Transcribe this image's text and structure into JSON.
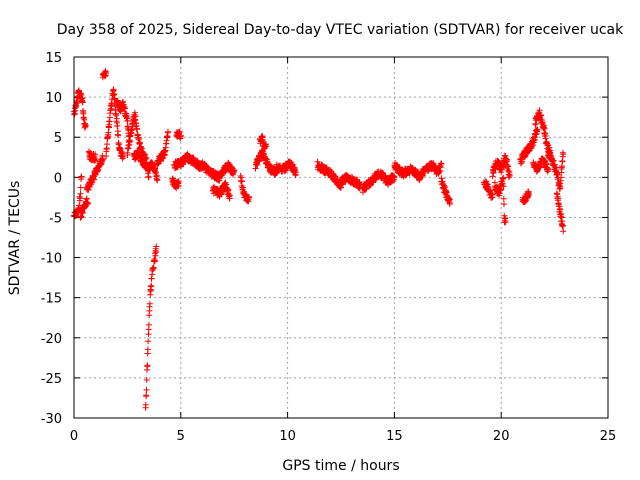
{
  "chart_data": {
    "type": "scatter",
    "title": "Day 358 of 2025, Sidereal Day-to-day VTEC variation (SDTVAR) for receiver ucak",
    "xlabel": "GPS time / hours",
    "ylabel": "SDTVAR / TECUs",
    "xlim": [
      0,
      25
    ],
    "ylim": [
      -30,
      15
    ],
    "xticks": [
      0,
      5,
      10,
      15,
      20,
      25
    ],
    "yticks": [
      -30,
      -25,
      -20,
      -15,
      -10,
      -5,
      0,
      5,
      10,
      15
    ],
    "grid": true,
    "marker": "+",
    "color": "#ff0000",
    "series": [
      {
        "name": "SDTVAR",
        "segments": [
          {
            "x0": 0.0,
            "x1": 0.35,
            "pts": [
              [
                0.0,
                -4.8
              ],
              [
                0.1,
                -4.6
              ],
              [
                0.2,
                -4.2
              ],
              [
                0.3,
                -2.0
              ],
              [
                0.35,
                0.5
              ]
            ]
          },
          {
            "x0": 0.0,
            "x1": 0.55,
            "pts": [
              [
                0.0,
                8.0
              ],
              [
                0.1,
                9.0
              ],
              [
                0.2,
                10.5
              ],
              [
                0.3,
                10.3
              ],
              [
                0.4,
                9.5
              ],
              [
                0.45,
                7.5
              ],
              [
                0.5,
                6.5
              ]
            ]
          },
          {
            "x0": 0.3,
            "x1": 0.65,
            "pts": [
              [
                0.3,
                -4.8
              ],
              [
                0.4,
                -4.2
              ],
              [
                0.5,
                -3.5
              ],
              [
                0.6,
                -3.0
              ]
            ]
          },
          {
            "x0": 0.6,
            "x1": 1.35,
            "pts": [
              [
                0.6,
                -1.5
              ],
              [
                0.8,
                -0.5
              ],
              [
                1.0,
                0.5
              ],
              [
                1.2,
                1.5
              ],
              [
                1.35,
                2.5
              ]
            ]
          },
          {
            "x0": 0.7,
            "x1": 1.0,
            "pts": [
              [
                0.7,
                2.8
              ],
              [
                0.85,
                2.5
              ],
              [
                1.0,
                2.5
              ]
            ]
          },
          {
            "x0": 1.35,
            "x1": 1.5,
            "pts": [
              [
                1.35,
                12.5
              ],
              [
                1.45,
                13.0
              ],
              [
                1.5,
                12.7
              ]
            ]
          },
          {
            "x0": 1.5,
            "x1": 2.3,
            "pts": [
              [
                1.5,
                3.0
              ],
              [
                1.7,
                8.0
              ],
              [
                1.85,
                11.0
              ],
              [
                2.0,
                7.0
              ],
              [
                2.1,
                4.0
              ],
              [
                2.2,
                3.0
              ],
              [
                2.3,
                2.5
              ]
            ]
          },
          {
            "x0": 2.0,
            "x1": 2.6,
            "pts": [
              [
                2.0,
                9.5
              ],
              [
                2.15,
                8.5
              ],
              [
                2.3,
                9.0
              ],
              [
                2.45,
                7.5
              ],
              [
                2.6,
                5.0
              ]
            ]
          },
          {
            "x0": 2.5,
            "x1": 3.4,
            "pts": [
              [
                2.5,
                3.0
              ],
              [
                2.7,
                6.0
              ],
              [
                2.85,
                7.8
              ],
              [
                3.0,
                5.0
              ],
              [
                3.2,
                3.0
              ],
              [
                3.4,
                2.0
              ]
            ]
          },
          {
            "x0": 2.8,
            "x1": 3.5,
            "pts": [
              [
                2.8,
                2.5
              ],
              [
                3.0,
                3.0
              ],
              [
                3.2,
                2.0
              ],
              [
                3.4,
                1.5
              ],
              [
                3.5,
                0.0
              ]
            ]
          },
          {
            "x0": 3.5,
            "x1": 3.9,
            "pts": [
              [
                3.5,
                1.2
              ],
              [
                3.65,
                1.5
              ],
              [
                3.8,
                1.0
              ],
              [
                3.9,
                -0.5
              ]
            ]
          },
          {
            "x0": 3.35,
            "x1": 3.85,
            "pts": [
              [
                3.35,
                -29.0
              ],
              [
                3.45,
                -22.0
              ],
              [
                3.55,
                -15.5
              ],
              [
                3.65,
                -12.0
              ],
              [
                3.75,
                -10.5
              ],
              [
                3.85,
                -9.0
              ]
            ]
          },
          {
            "x0": 3.9,
            "x1": 4.4,
            "pts": [
              [
                3.9,
                2.0
              ],
              [
                4.1,
                2.5
              ],
              [
                4.25,
                3.0
              ],
              [
                4.4,
                5.5
              ]
            ]
          },
          {
            "x0": 4.6,
            "x1": 4.9,
            "pts": [
              [
                4.6,
                -0.5
              ],
              [
                4.75,
                -1.0
              ],
              [
                4.9,
                -0.8
              ]
            ]
          },
          {
            "x0": 4.8,
            "x1": 5.0,
            "pts": [
              [
                4.8,
                5.2
              ],
              [
                4.9,
                5.5
              ],
              [
                5.0,
                5.0
              ]
            ]
          },
          {
            "x0": 4.7,
            "x1": 6.0,
            "pts": [
              [
                4.7,
                1.5
              ],
              [
                5.0,
                1.8
              ],
              [
                5.3,
                2.5
              ],
              [
                5.6,
                2.0
              ],
              [
                6.0,
                1.2
              ]
            ]
          },
          {
            "x0": 6.0,
            "x1": 7.5,
            "pts": [
              [
                6.0,
                1.5
              ],
              [
                6.4,
                0.5
              ],
              [
                6.8,
                0.0
              ],
              [
                7.2,
                1.5
              ],
              [
                7.5,
                0.5
              ]
            ]
          },
          {
            "x0": 6.5,
            "x1": 7.3,
            "pts": [
              [
                6.5,
                -1.5
              ],
              [
                6.8,
                -2.0
              ],
              [
                7.1,
                -1.0
              ],
              [
                7.3,
                -2.5
              ]
            ]
          },
          {
            "x0": 7.8,
            "x1": 8.2,
            "pts": [
              [
                7.8,
                0.0
              ],
              [
                7.95,
                -2.0
              ],
              [
                8.1,
                -3.0
              ],
              [
                8.2,
                -2.5
              ]
            ]
          },
          {
            "x0": 8.5,
            "x1": 9.5,
            "pts": [
              [
                8.5,
                1.5
              ],
              [
                8.8,
                3.0
              ],
              [
                9.0,
                2.0
              ],
              [
                9.2,
                1.0
              ],
              [
                9.5,
                0.5
              ]
            ]
          },
          {
            "x0": 8.7,
            "x1": 9.0,
            "pts": [
              [
                8.7,
                4.5
              ],
              [
                8.8,
                5.0
              ],
              [
                8.9,
                3.8
              ]
            ]
          },
          {
            "x0": 9.5,
            "x1": 10.4,
            "pts": [
              [
                9.5,
                1.5
              ],
              [
                9.8,
                1.0
              ],
              [
                10.1,
                1.8
              ],
              [
                10.4,
                0.5
              ]
            ]
          },
          {
            "x0": 11.4,
            "x1": 12.5,
            "pts": [
              [
                11.4,
                1.5
              ],
              [
                11.7,
                1.0
              ],
              [
                12.0,
                0.5
              ],
              [
                12.3,
                -0.5
              ],
              [
                12.5,
                -1.0
              ]
            ]
          },
          {
            "x0": 12.5,
            "x1": 13.4,
            "pts": [
              [
                12.5,
                -0.5
              ],
              [
                12.8,
                0.0
              ],
              [
                13.1,
                -0.5
              ],
              [
                13.4,
                -1.0
              ]
            ]
          },
          {
            "x0": 13.5,
            "x1": 15.0,
            "pts": [
              [
                13.5,
                -1.5
              ],
              [
                13.9,
                -0.5
              ],
              [
                14.3,
                0.5
              ],
              [
                14.7,
                -0.5
              ],
              [
                15.0,
                0.0
              ]
            ]
          },
          {
            "x0": 15.0,
            "x1": 16.5,
            "pts": [
              [
                15.0,
                1.5
              ],
              [
                15.4,
                0.5
              ],
              [
                15.8,
                1.0
              ],
              [
                16.2,
                0.0
              ],
              [
                16.5,
                1.5
              ]
            ]
          },
          {
            "x0": 16.5,
            "x1": 17.2,
            "pts": [
              [
                16.5,
                1.0
              ],
              [
                16.8,
                1.5
              ],
              [
                17.0,
                0.5
              ],
              [
                17.2,
                1.5
              ]
            ]
          },
          {
            "x0": 17.2,
            "x1": 17.6,
            "pts": [
              [
                17.2,
                -0.5
              ],
              [
                17.4,
                -2.0
              ],
              [
                17.6,
                -3.0
              ]
            ]
          },
          {
            "x0": 19.2,
            "x1": 19.6,
            "pts": [
              [
                19.2,
                -0.5
              ],
              [
                19.4,
                -1.5
              ],
              [
                19.6,
                -2.5
              ]
            ]
          },
          {
            "x0": 19.6,
            "x1": 20.4,
            "pts": [
              [
                19.6,
                0.5
              ],
              [
                19.8,
                2.0
              ],
              [
                20.0,
                1.0
              ],
              [
                20.2,
                2.5
              ],
              [
                20.4,
                0.0
              ]
            ]
          },
          {
            "x0": 19.7,
            "x1": 20.2,
            "pts": [
              [
                19.7,
                -1.0
              ],
              [
                19.9,
                -2.0
              ],
              [
                20.1,
                0.0
              ],
              [
                20.15,
                -5.5
              ]
            ]
          },
          {
            "x0": 20.9,
            "x1": 21.7,
            "pts": [
              [
                20.9,
                2.0
              ],
              [
                21.1,
                3.0
              ],
              [
                21.3,
                3.5
              ],
              [
                21.5,
                4.5
              ],
              [
                21.7,
                6.0
              ]
            ]
          },
          {
            "x0": 21.0,
            "x1": 21.3,
            "pts": [
              [
                21.0,
                -2.5
              ],
              [
                21.1,
                -2.8
              ],
              [
                21.25,
                -2.2
              ]
            ]
          },
          {
            "x0": 21.6,
            "x1": 22.3,
            "pts": [
              [
                21.6,
                7.0
              ],
              [
                21.8,
                8.0
              ],
              [
                22.0,
                6.0
              ],
              [
                22.15,
                4.0
              ],
              [
                22.3,
                3.0
              ]
            ]
          },
          {
            "x0": 21.5,
            "x1": 22.2,
            "pts": [
              [
                21.5,
                1.5
              ],
              [
                21.7,
                1.0
              ],
              [
                21.9,
                2.0
              ],
              [
                22.1,
                1.5
              ],
              [
                22.2,
                0.5
              ]
            ]
          },
          {
            "x0": 22.2,
            "x1": 22.9,
            "pts": [
              [
                22.2,
                3.0
              ],
              [
                22.4,
                2.0
              ],
              [
                22.6,
                0.5
              ],
              [
                22.75,
                -1.5
              ],
              [
                22.9,
                3.0
              ]
            ]
          },
          {
            "x0": 22.6,
            "x1": 22.9,
            "pts": [
              [
                22.6,
                -2.0
              ],
              [
                22.7,
                -3.5
              ],
              [
                22.8,
                -5.0
              ],
              [
                22.9,
                -6.5
              ]
            ]
          }
        ]
      }
    ]
  }
}
